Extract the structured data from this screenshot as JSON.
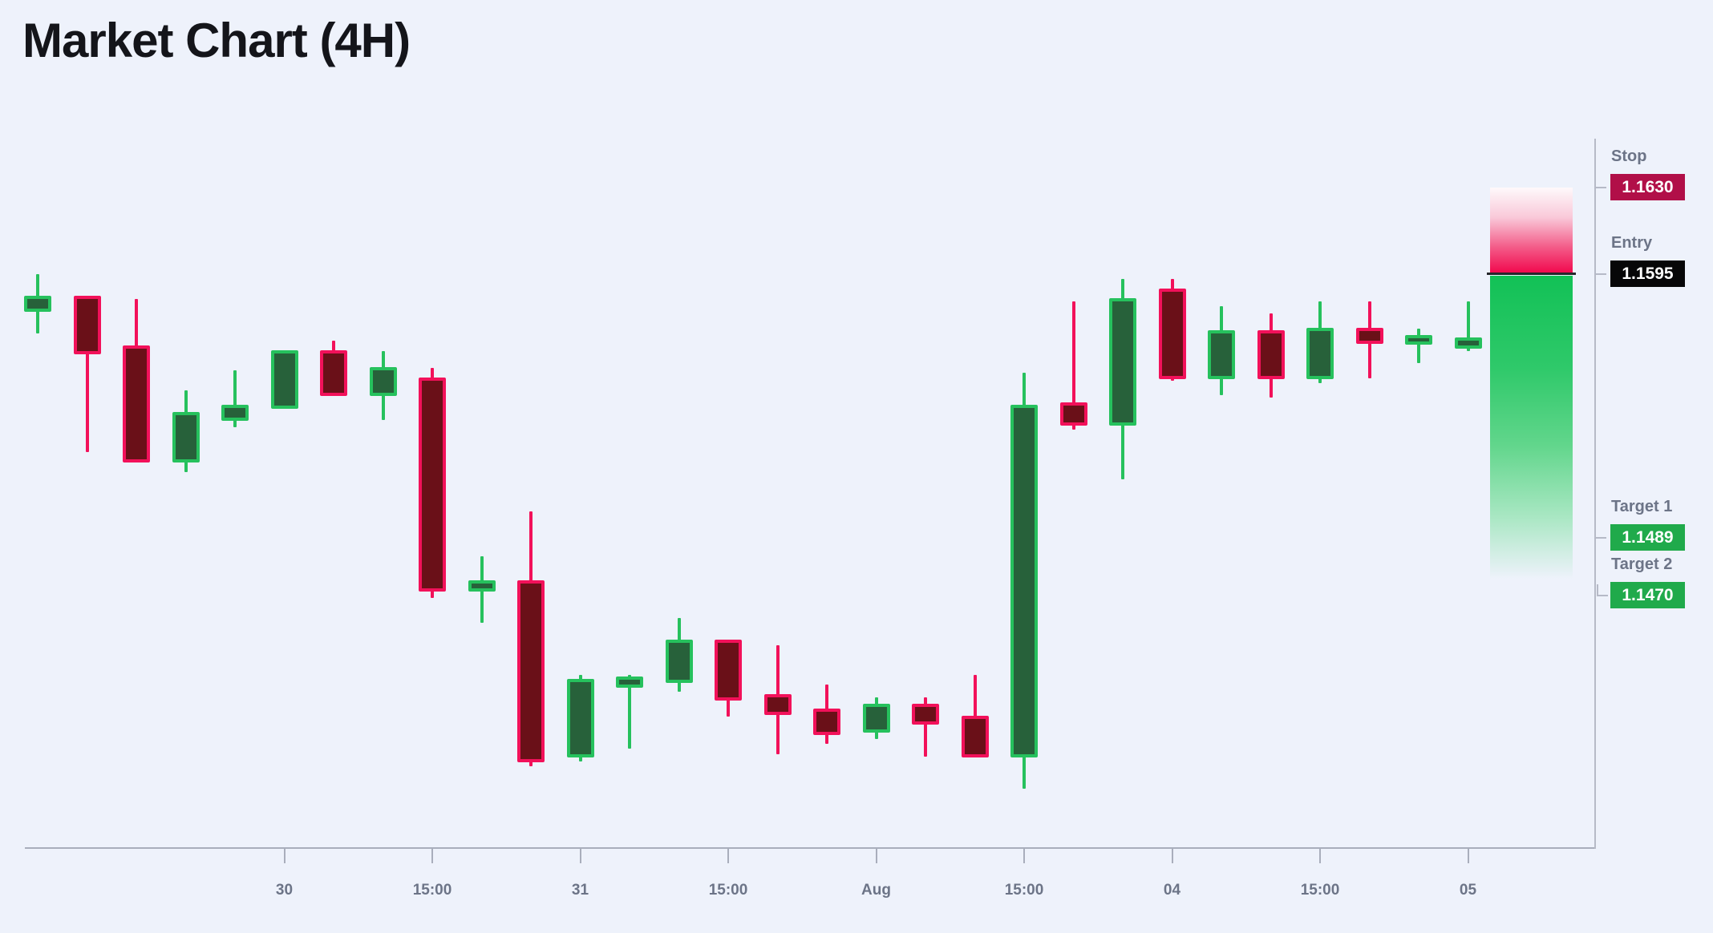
{
  "title": "Market Chart (4H)",
  "levels": {
    "stop": {
      "label": "Stop",
      "value": "1.1630",
      "price": 1.163,
      "badge_color": "#b10f48"
    },
    "entry": {
      "label": "Entry",
      "value": "1.1595",
      "price": 1.1595,
      "badge_color": "#070708"
    },
    "target1": {
      "label": "Target 1",
      "value": "1.1489",
      "price": 1.1489,
      "badge_color": "#20aa4b"
    },
    "target2": {
      "label": "Target 2",
      "value": "1.1470",
      "price": 1.147,
      "badge_color": "#20aa4b"
    }
  },
  "chart_data": {
    "type": "candlestick",
    "timeframe": "4H",
    "title": "Market Chart (4H)",
    "x_tick_labels": [
      "30",
      "15:00",
      "31",
      "15:00",
      "Aug",
      "15:00",
      "04",
      "15:00",
      "05"
    ],
    "x_tick_candle_indices": [
      5,
      8,
      11,
      14,
      17,
      20,
      23,
      26,
      29
    ],
    "y_range": [
      1.1387,
      1.164
    ],
    "grid": false,
    "candles": [
      {
        "o": 1.1581,
        "h": 1.1595,
        "l": 1.1571,
        "c": 1.1585
      },
      {
        "o": 1.1585,
        "h": 1.1586,
        "l": 1.1523,
        "c": 1.1564
      },
      {
        "o": 1.1565,
        "h": 1.1585,
        "l": 1.1519,
        "c": 1.152
      },
      {
        "o": 1.152,
        "h": 1.1548,
        "l": 1.1515,
        "c": 1.1538
      },
      {
        "o": 1.1537,
        "h": 1.1556,
        "l": 1.1533,
        "c": 1.1541
      },
      {
        "o": 1.1542,
        "h": 1.1564,
        "l": 1.1542,
        "c": 1.1563
      },
      {
        "o": 1.1563,
        "h": 1.1568,
        "l": 1.1546,
        "c": 1.1547
      },
      {
        "o": 1.1547,
        "h": 1.1564,
        "l": 1.1536,
        "c": 1.1556
      },
      {
        "o": 1.1552,
        "h": 1.1557,
        "l": 1.1464,
        "c": 1.1468
      },
      {
        "o": 1.1468,
        "h": 1.1481,
        "l": 1.1454,
        "c": 1.147
      },
      {
        "o": 1.147,
        "h": 1.1499,
        "l": 1.1396,
        "c": 1.1399
      },
      {
        "o": 1.1401,
        "h": 1.1433,
        "l": 1.1398,
        "c": 1.143
      },
      {
        "o": 1.1429,
        "h": 1.1433,
        "l": 1.1403,
        "c": 1.1431
      },
      {
        "o": 1.1431,
        "h": 1.1456,
        "l": 1.1426,
        "c": 1.1446
      },
      {
        "o": 1.1446,
        "h": 1.1447,
        "l": 1.1416,
        "c": 1.1424
      },
      {
        "o": 1.1424,
        "h": 1.1445,
        "l": 1.1401,
        "c": 1.1418
      },
      {
        "o": 1.1418,
        "h": 1.1429,
        "l": 1.1405,
        "c": 1.141
      },
      {
        "o": 1.1411,
        "h": 1.1424,
        "l": 1.1407,
        "c": 1.142
      },
      {
        "o": 1.142,
        "h": 1.1424,
        "l": 1.14,
        "c": 1.1414
      },
      {
        "o": 1.1415,
        "h": 1.1433,
        "l": 1.14,
        "c": 1.1401
      },
      {
        "o": 1.1401,
        "h": 1.1555,
        "l": 1.1387,
        "c": 1.1541
      },
      {
        "o": 1.1542,
        "h": 1.1584,
        "l": 1.1532,
        "c": 1.1535
      },
      {
        "o": 1.1535,
        "h": 1.1593,
        "l": 1.1512,
        "c": 1.1584
      },
      {
        "o": 1.1588,
        "h": 1.1593,
        "l": 1.1552,
        "c": 1.1554
      },
      {
        "o": 1.1554,
        "h": 1.1582,
        "l": 1.1546,
        "c": 1.1571
      },
      {
        "o": 1.1571,
        "h": 1.1579,
        "l": 1.1545,
        "c": 1.1554
      },
      {
        "o": 1.1554,
        "h": 1.1584,
        "l": 1.1551,
        "c": 1.1572
      },
      {
        "o": 1.1572,
        "h": 1.1584,
        "l": 1.1553,
        "c": 1.1568
      },
      {
        "o": 1.1568,
        "h": 1.1573,
        "l": 1.1559,
        "c": 1.1569
      },
      {
        "o": 1.1566,
        "h": 1.1584,
        "l": 1.1564,
        "c": 1.1568
      }
    ]
  },
  "colors": {
    "background": "#eef2fb",
    "bull_border": "#26c15d",
    "bull_fill": "#27613a",
    "bear_border": "#f2115a",
    "bear_fill": "#6a1018",
    "stop_badge": "#b10f48",
    "entry_badge": "#070708",
    "target_badge": "#20aa4b",
    "label_gray": "#6c7487",
    "axis_gray": "#b6bac7",
    "entry_line": "#26272b",
    "risk_zone_bottom": "#f20a4e",
    "reward_zone_top": "#12c156"
  }
}
